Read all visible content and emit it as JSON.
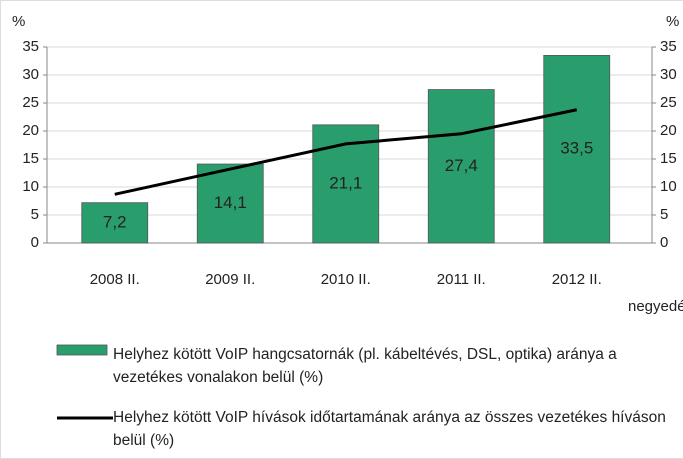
{
  "chart_data": {
    "type": "bar",
    "y_label": "%",
    "y2_label": "%",
    "x_label": "negyedév",
    "categories": [
      "2008 II.",
      "2009 II.",
      "2010 II.",
      "2011 II.",
      "2012 II."
    ],
    "series": [
      {
        "name": "Helyhez kötött VoIP hangcsatornák (pl. kábeltévés, DSL, optika) aránya a vezetékes vonalakon belül (%)",
        "type": "bar",
        "color": "#2a9d6c",
        "values": [
          7.2,
          14.1,
          21.1,
          27.4,
          33.5
        ],
        "value_labels": [
          "7,2",
          "14,1",
          "21,1",
          "27,4",
          "33,5"
        ]
      },
      {
        "name": "Helyhez kötött VoIP hívások időtartamának aránya az összes vezetékes híváson belül (%)",
        "type": "line",
        "color": "#000000",
        "axis": "y2",
        "values": [
          8.7,
          13.2,
          17.7,
          19.5,
          23.8
        ]
      }
    ],
    "ylim": [
      0,
      35
    ],
    "yticks": [
      0,
      5,
      10,
      15,
      20,
      25,
      30,
      35
    ],
    "y2lim": [
      0,
      35
    ],
    "y2ticks": [
      0,
      5,
      10,
      15,
      20,
      25,
      30,
      35
    ],
    "grid": true
  }
}
